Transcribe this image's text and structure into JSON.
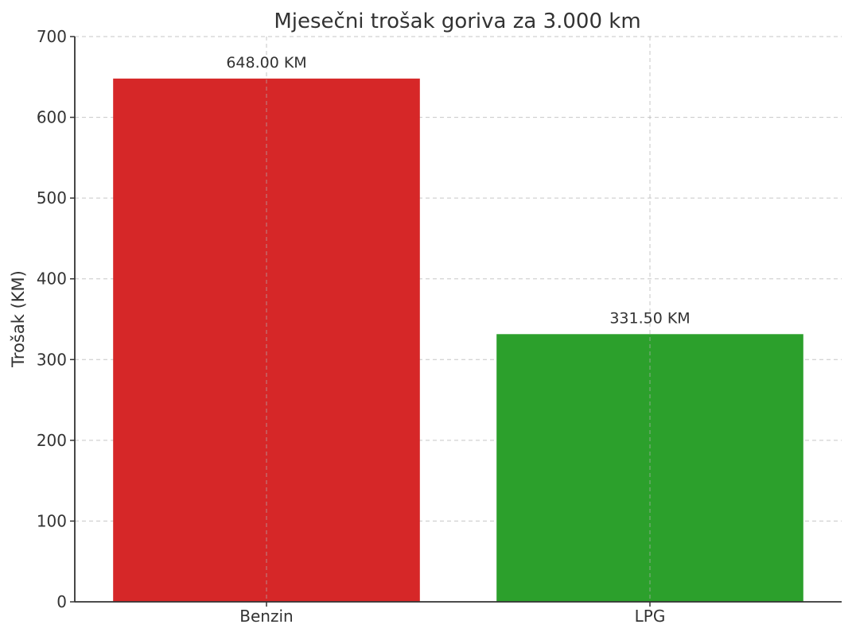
{
  "chart_data": {
    "type": "bar",
    "title": "Mjesečni trošak goriva za 3.000 km",
    "xlabel": "",
    "ylabel": "Trošak (KM)",
    "categories": [
      "Benzin",
      "LPG"
    ],
    "values": [
      648.0,
      331.5
    ],
    "value_labels": [
      "648.00 KM",
      "331.50 KM"
    ],
    "colors": [
      "#d62728",
      "#2ca02c"
    ],
    "ylim": [
      0,
      700
    ],
    "yticks": [
      0,
      100,
      200,
      300,
      400,
      500,
      600,
      700
    ],
    "ytick_labels": [
      "0",
      "100",
      "200",
      "300",
      "400",
      "500",
      "600",
      "700"
    ],
    "grid": true
  }
}
